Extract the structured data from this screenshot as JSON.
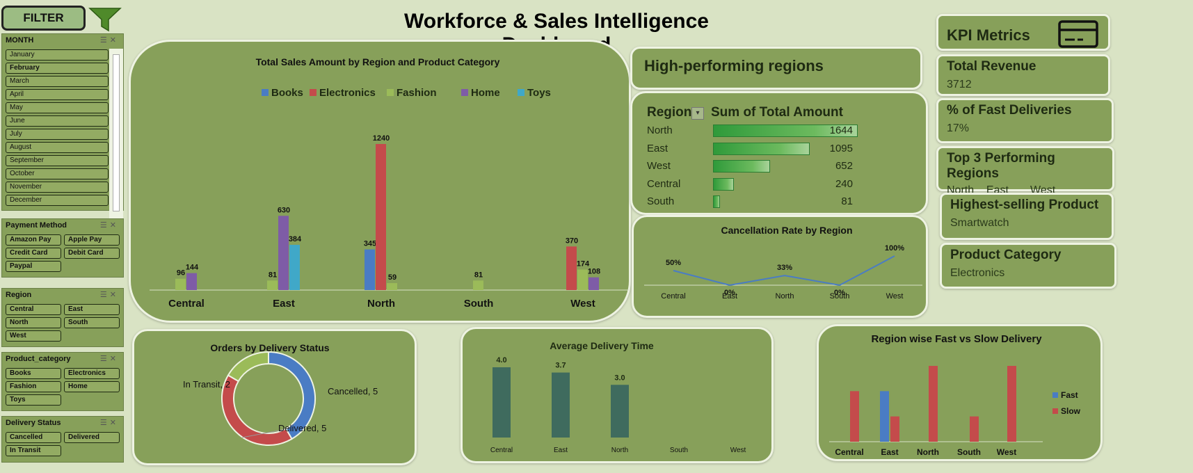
{
  "title": "Workforce & Sales Intelligence Dashboard",
  "filter": {
    "label": "FILTER",
    "slicers": {
      "month": {
        "title": "MONTH",
        "items": [
          "January",
          "February",
          "March",
          "April",
          "May",
          "June",
          "July",
          "August",
          "September",
          "October",
          "November",
          "December"
        ]
      },
      "payment": {
        "title": "Payment Method",
        "items": [
          "Amazon Pay",
          "Apple Pay",
          "Credit Card",
          "Debit Card",
          "Paypal"
        ]
      },
      "region": {
        "title": "Region",
        "items": [
          "Central",
          "East",
          "North",
          "South",
          "West"
        ]
      },
      "category": {
        "title": "Product_category",
        "items": [
          "Books",
          "Electronics",
          "Fashion",
          "Home",
          "Toys"
        ]
      },
      "delivery": {
        "title": "Delivery Status",
        "items": [
          "Cancelled",
          "Delivered",
          "In Transit"
        ]
      }
    }
  },
  "colors": {
    "background": "#d9e3c4",
    "card": "#87a05a",
    "books": "#4a7cc4",
    "electronics": "#c44b4b",
    "fashion": "#9bbb59",
    "home": "#7e5ca6",
    "toys": "#40a8c8",
    "avg_bar": "#3f6b5e"
  },
  "sales_chart": {
    "chart_data": {
      "type": "bar",
      "title": "Total Sales Amount by Region and Product Category",
      "categories": [
        "Central",
        "East",
        "North",
        "South",
        "West"
      ],
      "series": [
        {
          "name": "Books",
          "values": [
            null,
            null,
            345,
            null,
            null
          ]
        },
        {
          "name": "Electronics",
          "values": [
            null,
            null,
            1240,
            null,
            370
          ]
        },
        {
          "name": "Fashion",
          "values": [
            96,
            81,
            59,
            81,
            174
          ]
        },
        {
          "name": "Home",
          "values": [
            144,
            630,
            null,
            null,
            108
          ]
        },
        {
          "name": "Toys",
          "values": [
            null,
            384,
            null,
            null,
            null
          ]
        }
      ],
      "legend": "top"
    }
  },
  "high_perf": {
    "title": "High-performing regions",
    "col_region": "Region",
    "col_amount": "Sum of Total Amount",
    "rows": [
      {
        "region": "North",
        "amount": "1644",
        "value": 1644
      },
      {
        "region": "East",
        "amount": "1095",
        "value": 1095
      },
      {
        "region": "West",
        "amount": "652",
        "value": 652
      },
      {
        "region": "Central",
        "amount": "240",
        "value": 240
      },
      {
        "region": "South",
        "amount": "81",
        "value": 81
      }
    ]
  },
  "cancel_chart": {
    "chart_data": {
      "type": "line",
      "title": "Cancellation Rate by Region",
      "categories": [
        "Central",
        "East",
        "North",
        "South",
        "West"
      ],
      "values": [
        50,
        0,
        33,
        0,
        100
      ],
      "labels": [
        "50%",
        "0%",
        "33%",
        "0%",
        "100%"
      ]
    }
  },
  "kpis": {
    "header": "KPI Metrics",
    "total_revenue": {
      "title": "Total Revenue",
      "value": "3712"
    },
    "fast_delivery": {
      "title": "% of Fast Deliveries",
      "value": "17%"
    },
    "top3": {
      "title": "Top 3 Performing Regions",
      "values": [
        "North",
        "East",
        "West"
      ]
    },
    "top_product": {
      "title": "Highest-selling Product",
      "value": "Smartwatch"
    },
    "product_category": {
      "title": "Product Category",
      "value": "Electronics"
    }
  },
  "donut": {
    "chart_data": {
      "type": "pie",
      "title": "Orders by Delivery Status",
      "categories": [
        "Cancelled",
        "Delivered",
        "In Transit"
      ],
      "values": [
        5,
        5,
        2
      ],
      "labels": [
        "Cancelled, 5",
        "Delivered, 5",
        "In Transit, 2"
      ]
    }
  },
  "avg_delivery": {
    "chart_data": {
      "type": "bar",
      "title": "Average Delivery Time",
      "categories": [
        "Central",
        "East",
        "North",
        "South",
        "West"
      ],
      "values": [
        4.0,
        3.7,
        3.0,
        null,
        null
      ],
      "labels": [
        "4.0",
        "3.7",
        "3.0",
        "",
        ""
      ]
    }
  },
  "fast_slow": {
    "chart_data": {
      "type": "bar",
      "title": "Region wise Fast vs Slow Delivery",
      "categories": [
        "Central",
        "East",
        "North",
        "South",
        "West"
      ],
      "series": [
        {
          "name": "Fast",
          "values": [
            0,
            2,
            0,
            0,
            0
          ]
        },
        {
          "name": "Slow",
          "values": [
            2,
            1,
            3,
            1,
            3
          ]
        }
      ],
      "legend": "right"
    }
  }
}
